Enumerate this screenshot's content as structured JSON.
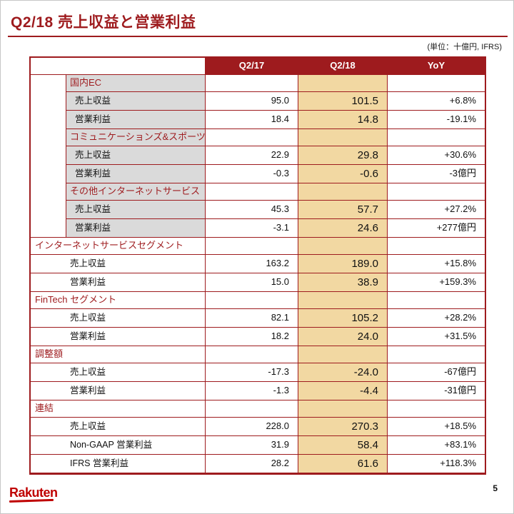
{
  "slide": {
    "title": "Q2/18 売上収益と営業利益",
    "unit_note": "(単位：十億円, IFRS)",
    "page_number": "5",
    "logo_text": "Rakuten"
  },
  "table": {
    "columns": [
      "Q2/17",
      "Q2/18",
      "YoY"
    ],
    "row_type_labels": [
      "売上収益",
      "営業利益"
    ],
    "groups": [
      {
        "label": "国内EC",
        "nested": true,
        "rows": [
          {
            "label": "売上収益",
            "q217": "95.0",
            "q218": "101.5",
            "yoy": "+6.8%"
          },
          {
            "label": "営業利益",
            "q217": "18.4",
            "q218": "14.8",
            "yoy": "-19.1%"
          }
        ]
      },
      {
        "label": "コミュニケーションズ&スポーツ",
        "nested": true,
        "rows": [
          {
            "label": "売上収益",
            "q217": "22.9",
            "q218": "29.8",
            "yoy": "+30.6%"
          },
          {
            "label": "営業利益",
            "q217": "-0.3",
            "q218": "-0.6",
            "yoy": "-3億円"
          }
        ]
      },
      {
        "label": "その他インターネットサービス",
        "nested": true,
        "rows": [
          {
            "label": "売上収益",
            "q217": "45.3",
            "q218": "57.7",
            "yoy": "+27.2%"
          },
          {
            "label": "営業利益",
            "q217": "-3.1",
            "q218": "24.6",
            "yoy": "+277億円"
          }
        ]
      },
      {
        "label": "インターネットサービスセグメント",
        "nested": false,
        "rows": [
          {
            "label": "売上収益",
            "q217": "163.2",
            "q218": "189.0",
            "yoy": "+15.8%"
          },
          {
            "label": "営業利益",
            "q217": "15.0",
            "q218": "38.9",
            "yoy": "+159.3%"
          }
        ]
      },
      {
        "label": "FinTech セグメント",
        "nested": false,
        "rows": [
          {
            "label": "売上収益",
            "q217": "82.1",
            "q218": "105.2",
            "yoy": "+28.2%"
          },
          {
            "label": "営業利益",
            "q217": "18.2",
            "q218": "24.0",
            "yoy": "+31.5%"
          }
        ]
      },
      {
        "label": "調整額",
        "nested": false,
        "rows": [
          {
            "label": "売上収益",
            "q217": "-17.3",
            "q218": "-24.0",
            "yoy": "-67億円"
          },
          {
            "label": "営業利益",
            "q217": "-1.3",
            "q218": "-4.4",
            "yoy": "-31億円"
          }
        ]
      },
      {
        "label": "連結",
        "nested": false,
        "rows": [
          {
            "label": "売上収益",
            "q217": "228.0",
            "q218": "270.3",
            "yoy": "+18.5%"
          },
          {
            "label": "Non-GAAP 営業利益",
            "q217": "31.9",
            "q218": "58.4",
            "yoy": "+83.1%"
          },
          {
            "label": "IFRS 営業利益",
            "q217": "28.2",
            "q218": "61.6",
            "yoy": "+118.3%"
          }
        ]
      }
    ]
  },
  "colors": {
    "crimson": "#9E1B1E",
    "highlight": "#F2D8A2",
    "gray": "#DADADA",
    "logo_red": "#BF0000"
  }
}
